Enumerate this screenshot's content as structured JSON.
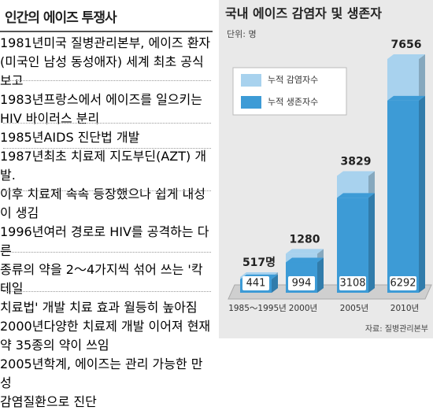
{
  "timeline": {
    "title": "인간의 에이즈 투쟁사",
    "items": [
      {
        "year": "1981년",
        "lines": [
          "미국 질병관리본부, 에이즈 환자",
          "(미국인 남성 동성애자) 세계 최초 공식 보고"
        ]
      },
      {
        "year": "1983년",
        "lines": [
          "프랑스에서 에이즈를 일으키는",
          "HIV 바이러스 분리"
        ]
      },
      {
        "year": "1985년",
        "lines": [
          "AIDS 진단법 개발"
        ]
      },
      {
        "year": "1987년",
        "lines": [
          "최초 치료제 지도부딘(AZT) 개발.",
          "이후 치료제 속속 등장했으나 쉽게 내성이 생김"
        ]
      },
      {
        "year": "1996년",
        "lines": [
          "여러 경로로 HIV를 공격하는 다른",
          "종류의 약을 2～4가지씩 섞어 쓰는 '칵테일",
          "치료법' 개발 치료 효과 월등히 높아짐"
        ]
      },
      {
        "year": "2000년",
        "lines": [
          "다양한 치료제 개발 이어져 현재",
          "약 35종의 약이 쓰임"
        ]
      },
      {
        "year": "2005년",
        "lines": [
          "학계, 에이즈는 관리 가능한 만성",
          "감염질환으로 진단"
        ]
      }
    ]
  },
  "chart_data": {
    "type": "bar",
    "title": "국내 에이즈 감염자 및 생존자",
    "subtitle": "단위: 명",
    "categories": [
      "1985～1995년",
      "2000년",
      "2005년",
      "2010년"
    ],
    "series": [
      {
        "name": "누적 감염자수",
        "color": "#a8d2ee",
        "values": [
          517,
          1280,
          3829,
          7656
        ],
        "value_labels": [
          "517명",
          "1280",
          "3829",
          "7656"
        ]
      },
      {
        "name": "누적 생존자수",
        "color": "#3d9bd6",
        "values": [
          441,
          994,
          3108,
          6292
        ]
      }
    ],
    "source": "자료: 질병관리본부"
  }
}
